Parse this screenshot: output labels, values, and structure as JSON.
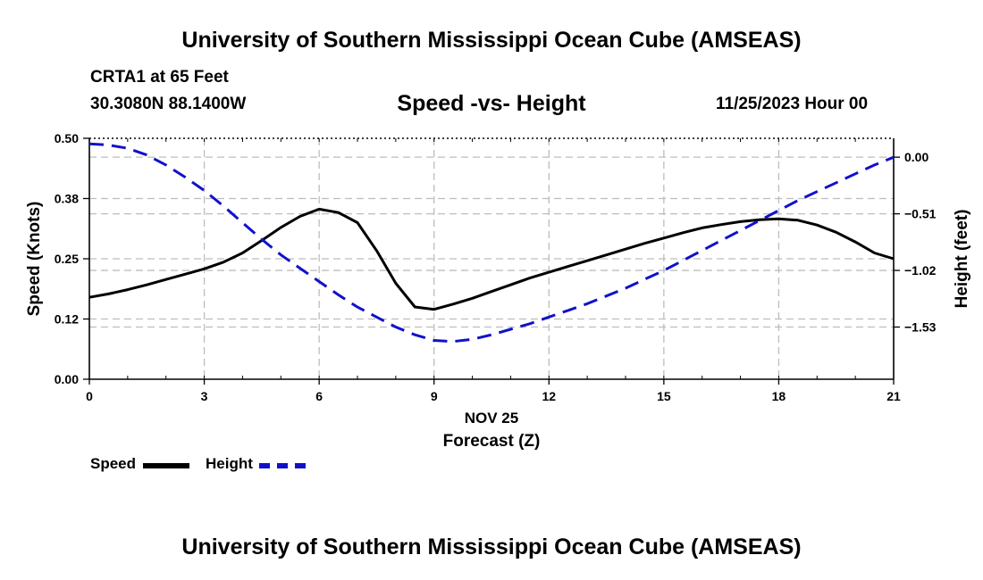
{
  "header": {
    "title": "University of Southern Mississippi Ocean Cube (AMSEAS)",
    "station": "CRTA1 at 65 Feet",
    "location": "30.3080N  88.1400W",
    "datetime": "11/25/2023 Hour 00"
  },
  "footer": {
    "title": "University of Southern Mississippi Ocean Cube (AMSEAS)"
  },
  "legend": {
    "speed_label": "Speed",
    "height_label": "Height"
  },
  "chart_data": {
    "type": "line",
    "title": "Speed -vs- Height",
    "xlabel": "Forecast (Z)",
    "xlabel_date": "NOV 25",
    "ylabel": "Speed (Knots)",
    "y2label": "Height (feet)",
    "xlim": [
      0,
      21
    ],
    "ylim": [
      0,
      0.5
    ],
    "y2lim": [
      -2.0,
      0.17
    ],
    "x_ticks": [
      "0",
      "3",
      "6",
      "9",
      "12",
      "15",
      "18",
      "21"
    ],
    "x_tick_values": [
      0,
      3,
      6,
      9,
      12,
      15,
      18,
      21
    ],
    "y_ticks": [
      "0.00",
      "0.12",
      "0.25",
      "0.38",
      "0.50"
    ],
    "y_tick_values": [
      0,
      0.125,
      0.25,
      0.375,
      0.5
    ],
    "y2_ticks": [
      "0.00",
      "−0.51",
      "−1.02",
      "−1.53"
    ],
    "y2_tick_values": [
      0,
      -0.51,
      -1.02,
      -1.53
    ],
    "grid": true,
    "series": [
      {
        "name": "Speed",
        "axis": "left",
        "color": "#000000",
        "style": "solid",
        "x": [
          0,
          0.5,
          1,
          1.5,
          2,
          2.5,
          3,
          3.5,
          4,
          4.5,
          5,
          5.5,
          6,
          6.5,
          7,
          7.5,
          8,
          8.5,
          9,
          9.5,
          10,
          10.5,
          11,
          11.5,
          12,
          12.5,
          13,
          13.5,
          14,
          14.5,
          15,
          15.5,
          16,
          16.5,
          17,
          17.5,
          18,
          18.5,
          19,
          19.5,
          20,
          20.5,
          21
        ],
        "values": [
          0.17,
          0.177,
          0.186,
          0.196,
          0.207,
          0.218,
          0.229,
          0.243,
          0.262,
          0.288,
          0.315,
          0.338,
          0.353,
          0.346,
          0.325,
          0.267,
          0.199,
          0.15,
          0.145,
          0.156,
          0.168,
          0.182,
          0.196,
          0.21,
          0.222,
          0.234,
          0.246,
          0.258,
          0.27,
          0.282,
          0.293,
          0.304,
          0.314,
          0.321,
          0.327,
          0.331,
          0.333,
          0.33,
          0.32,
          0.305,
          0.285,
          0.262,
          0.25
        ]
      },
      {
        "name": "Height",
        "axis": "right",
        "color": "#1111cc",
        "style": "dashed",
        "x": [
          0,
          0.5,
          1,
          1.5,
          2,
          2.5,
          3,
          3.5,
          4,
          4.5,
          5,
          5.5,
          6,
          6.5,
          7,
          7.5,
          8,
          8.5,
          9,
          9.5,
          10,
          10.5,
          11,
          11.5,
          12,
          12.5,
          13,
          13.5,
          14,
          14.5,
          15,
          15.5,
          16,
          16.5,
          17,
          17.5,
          18,
          18.5,
          19,
          19.5,
          20,
          20.5,
          21
        ],
        "values": [
          0.12,
          0.11,
          0.08,
          0.02,
          -0.07,
          -0.18,
          -0.3,
          -0.44,
          -0.59,
          -0.74,
          -0.88,
          -1.0,
          -1.12,
          -1.24,
          -1.35,
          -1.44,
          -1.53,
          -1.6,
          -1.65,
          -1.66,
          -1.64,
          -1.6,
          -1.55,
          -1.5,
          -1.44,
          -1.38,
          -1.32,
          -1.25,
          -1.18,
          -1.1,
          -1.02,
          -0.93,
          -0.84,
          -0.75,
          -0.66,
          -0.57,
          -0.48,
          -0.39,
          -0.31,
          -0.23,
          -0.15,
          -0.07,
          0.0
        ]
      }
    ]
  }
}
